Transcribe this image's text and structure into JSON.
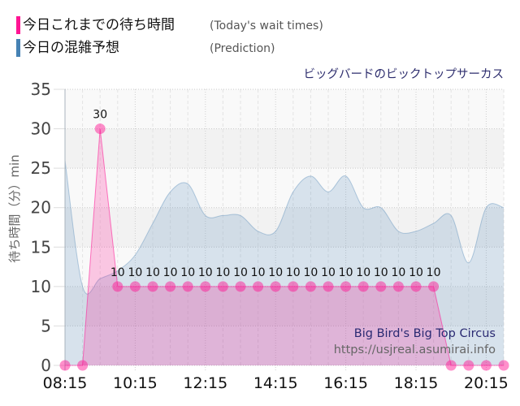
{
  "legend": [
    {
      "label": "今日これまでの待ち時間",
      "sublabel": "(Today's wait times)",
      "color": "#ff1493"
    },
    {
      "label": "今日の混雑予想",
      "sublabel": "(Prediction)",
      "color": "#4682b4"
    }
  ],
  "chart_title": "ビッグバードのビックトップサーカス",
  "watermark": {
    "title": "Big Bird's Big Top Circus",
    "url": "https://usjreal.asumirai.info"
  },
  "chart_data": {
    "type": "area",
    "title": "ビッグバードのビックトップサーカス",
    "xlabel": "",
    "ylabel": "待ち時間（分）min",
    "ylim": [
      0,
      35
    ],
    "yticks": [
      0,
      5,
      10,
      15,
      20,
      25,
      30,
      35
    ],
    "x": [
      "08:15",
      "08:45",
      "09:15",
      "09:45",
      "10:15",
      "10:45",
      "11:15",
      "11:45",
      "12:15",
      "12:45",
      "13:15",
      "13:45",
      "14:15",
      "14:45",
      "15:15",
      "15:45",
      "16:15",
      "16:45",
      "17:15",
      "17:45",
      "18:15",
      "18:45",
      "19:15",
      "19:45",
      "20:15",
      "20:45"
    ],
    "xtick_labels": [
      "08:15",
      "10:15",
      "12:15",
      "14:15",
      "16:15",
      "18:15",
      "20:15"
    ],
    "xtick_index": [
      0,
      4,
      8,
      12,
      16,
      20,
      24
    ],
    "grid": true,
    "legend_position": "top-left",
    "series": [
      {
        "name": "今日これまでの待ち時間 (Today's wait times)",
        "style": "line-markers-area",
        "color": "#ff1493",
        "show_labels": true,
        "values": [
          0,
          0,
          30,
          10,
          10,
          10,
          10,
          10,
          10,
          10,
          10,
          10,
          10,
          10,
          10,
          10,
          10,
          10,
          10,
          10,
          10,
          10,
          0,
          0,
          0,
          0
        ]
      },
      {
        "name": "今日の混雑予想 (Prediction)",
        "style": "smooth-area",
        "color": "#4682b4",
        "show_labels": false,
        "values": [
          26,
          10,
          11,
          12,
          14,
          18,
          22,
          23,
          19,
          19,
          19,
          17,
          17,
          22,
          24,
          22,
          24,
          20,
          20,
          17,
          17,
          18,
          19,
          13,
          20,
          20
        ]
      }
    ]
  }
}
